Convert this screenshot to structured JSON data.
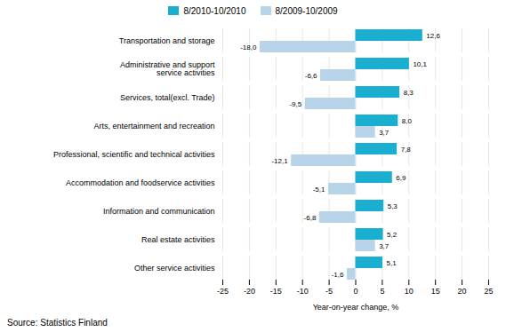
{
  "chart_data": {
    "type": "bar",
    "orientation": "horizontal",
    "categories": [
      "Other service activities",
      "Real estate activities",
      "Information and communication",
      "Accommodation and foodservice activities",
      "Professional, scientific and technical activities",
      "Arts, entertainment and recreation",
      "Services, total(excl. Trade)",
      "Administrative and support\nservice activities",
      "Transportation and storage"
    ],
    "series": [
      {
        "name": "8/2010-10/2010",
        "color": "#1aafd0",
        "values": [
          5.1,
          5.2,
          5.3,
          6.9,
          7.8,
          8.0,
          8.3,
          10.1,
          12.6
        ],
        "value_labels": [
          "5,1",
          "5,2",
          "5,3",
          "6,9",
          "7,8",
          "8,0",
          "8,3",
          "10,1",
          "12,6"
        ]
      },
      {
        "name": "8/2009-10/2009",
        "color": "#b8d4e8",
        "values": [
          -1.6,
          3.7,
          -6.8,
          -5.1,
          -12.1,
          3.7,
          -9.5,
          -6.6,
          -18.0
        ],
        "value_labels": [
          "-1,6",
          "3,7",
          "-6,8",
          "-5,1",
          "-12,1",
          "3,7",
          "-9,5",
          "-6,6",
          "-18,0"
        ]
      }
    ],
    "xlabel": "Year-on-year change, %",
    "xlim": [
      -25,
      25
    ],
    "xticks": [
      -25,
      -20,
      -15,
      -10,
      -5,
      0,
      5,
      10,
      15,
      20,
      25
    ],
    "grid": true,
    "data_labels": true,
    "legend": "top",
    "source": "Source: Statistics Finland"
  }
}
